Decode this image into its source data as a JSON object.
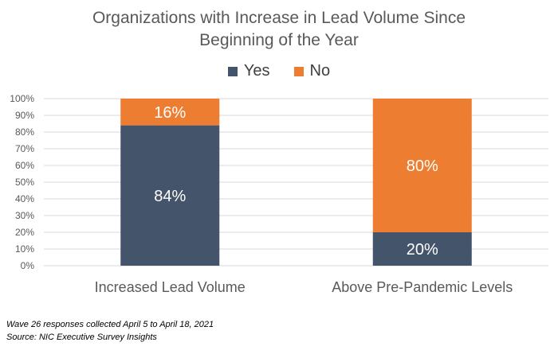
{
  "chart_data": {
    "type": "bar",
    "stacked": true,
    "title_lines": [
      "Organizations with Increase in Lead Volume Since",
      "Beginning of the Year"
    ],
    "categories": [
      "Increased Lead Volume",
      "Above Pre-Pandemic Levels"
    ],
    "series": [
      {
        "name": "Yes",
        "values": [
          84,
          20
        ],
        "labels": [
          "84%",
          "20%"
        ],
        "color": "#44546a"
      },
      {
        "name": "No",
        "values": [
          16,
          80
        ],
        "labels": [
          "16%",
          "80%"
        ],
        "color": "#ed7d31"
      }
    ],
    "ylim": [
      0,
      100
    ],
    "y_ticks": [
      "0%",
      "10%",
      "20%",
      "30%",
      "40%",
      "50%",
      "60%",
      "70%",
      "80%",
      "90%",
      "100%"
    ],
    "grid": true,
    "legend_position": "top-center"
  },
  "footnotes": [
    "Wave 26 responses collected April 5 to April 18, 2021",
    "Source: NIC Executive Survey Insights"
  ]
}
